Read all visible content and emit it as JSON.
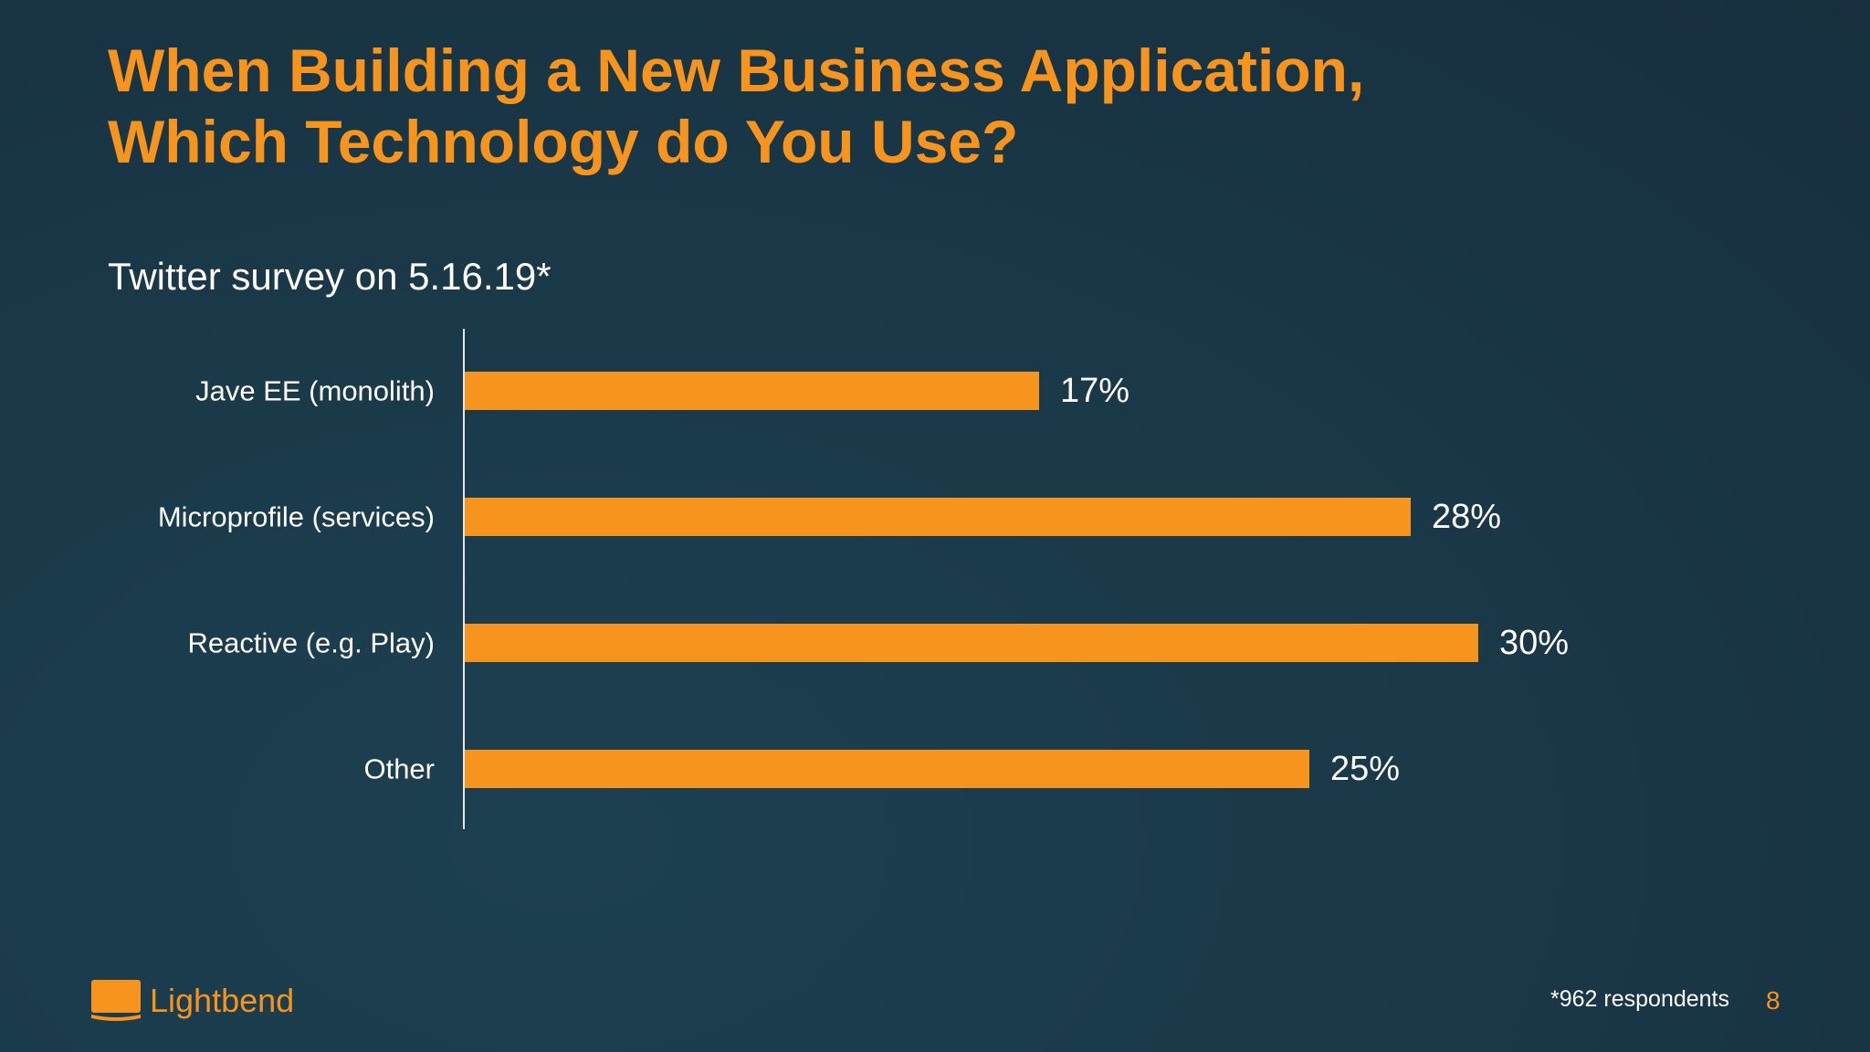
{
  "slide": {
    "title_line1": "When Building a New Business Application,",
    "title_line2": "Which Technology do You Use?",
    "subtitle": "Twitter survey on 5.16.19*",
    "footnote": "*962 respondents",
    "page_number": "8",
    "logo_text": "Lightbend"
  },
  "colors": {
    "accent": "#f7941d",
    "background": "#1a3a4a",
    "text": "#ffffff"
  },
  "chart_data": {
    "type": "bar",
    "orientation": "horizontal",
    "categories": [
      "Jave EE (monolith)",
      "Microprofile (services)",
      "Reactive (e.g. Play)",
      "Other"
    ],
    "values": [
      17,
      28,
      30,
      25
    ],
    "value_labels": [
      "17%",
      "28%",
      "30%",
      "25%"
    ],
    "unit": "%",
    "xlim": [
      0,
      30
    ],
    "grid": false,
    "legend": "none",
    "bar_color": "#f7941d"
  }
}
